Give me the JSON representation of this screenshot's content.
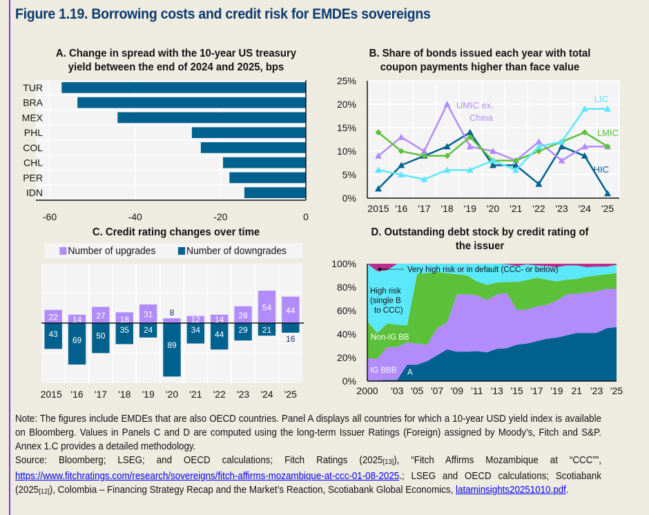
{
  "figure": {
    "title": "Figure 1.19. Borrowing costs and credit risk for EMDEs sovereigns"
  },
  "colors": {
    "dark_blue": "#00618f",
    "purple": "#b18cfa",
    "green": "#5cc13a",
    "cyan": "#5ce8fb",
    "magenta": "#b72f8a",
    "title_blue": "#0b3a6e",
    "background": "#eeebe1",
    "plot_bg": "#f4f4f4"
  },
  "chart_data": [
    {
      "id": "A",
      "type": "bar",
      "orientation": "horizontal",
      "title_line1": "A. Change in spread with the 10-year US treasury",
      "title_line2": "yield between the end of 2024 and 2025, bps",
      "categories": [
        "TUR",
        "BRA",
        "MEX",
        "PHL",
        "COL",
        "CHL",
        "PER",
        "IDN"
      ],
      "values": [
        -57.2,
        -53.5,
        -44.1,
        -26.7,
        -24.6,
        -19.4,
        -17.9,
        -14.4
      ],
      "xlim": [
        -60,
        0
      ],
      "xticks": [
        -60,
        -40,
        -20,
        0
      ],
      "xtick_labels": [
        "-60",
        "-40",
        "-20",
        "0"
      ],
      "color": "#00618f",
      "grid": true
    },
    {
      "id": "B",
      "type": "line",
      "title_line1": "B. Share of bonds issued each year with total",
      "title_line2": "coupon payments higher than face value",
      "x": [
        "2015",
        "'16",
        "'17",
        "'18",
        "'19",
        "'20",
        "'21",
        "'22",
        "'23",
        "'24",
        "'25"
      ],
      "ylim": [
        0,
        25
      ],
      "yticks": [
        0,
        5,
        10,
        15,
        20,
        25
      ],
      "ytick_labels": [
        "0%",
        "5%",
        "10%",
        "15%",
        "20%",
        "25%"
      ],
      "grid": true,
      "series": [
        {
          "name": "HIC",
          "label": "HIC",
          "color": "#00618f",
          "marker": "triangle",
          "values": [
            2,
            7,
            9,
            11,
            14,
            7,
            7,
            3,
            11,
            9,
            1
          ]
        },
        {
          "name": "UMIC ex. China",
          "label_line1": "UMIC ex.",
          "label_line2": "China",
          "color": "#b18cfa",
          "marker": "triangle",
          "values": [
            9,
            13,
            10,
            20,
            11,
            10,
            8,
            12,
            8,
            11,
            11
          ]
        },
        {
          "name": "LMIC",
          "label": "LMIC",
          "color": "#5cc13a",
          "marker": "diamond",
          "values": [
            14,
            10,
            9,
            9,
            13,
            8,
            8,
            10,
            12,
            14,
            11
          ]
        },
        {
          "name": "LIC",
          "label": "LIC",
          "color": "#5ce8fb",
          "marker": "triangle",
          "values": [
            6,
            5,
            4,
            6,
            6,
            8,
            6,
            11,
            12,
            19,
            19
          ]
        }
      ]
    },
    {
      "id": "C",
      "type": "bar",
      "title": "C. Credit rating changes over time",
      "categories": [
        "2015",
        "'16",
        "'17",
        "'18",
        "'19",
        "'20",
        "'21",
        "'22",
        "'23",
        "'24",
        "'25"
      ],
      "ylim": [
        -100,
        100
      ],
      "grid": true,
      "legend": [
        "Number of upgrades",
        "Number of downgrades"
      ],
      "series": [
        {
          "name": "Number of upgrades",
          "color": "#b18cfa",
          "values": [
            22,
            14,
            27,
            18,
            31,
            8,
            12,
            14,
            28,
            54,
            44
          ]
        },
        {
          "name": "Number of downgrades",
          "color": "#00618f",
          "values": [
            43,
            69,
            50,
            35,
            24,
            89,
            34,
            44,
            29,
            21,
            16
          ]
        }
      ]
    },
    {
      "id": "D",
      "type": "area",
      "stacked": true,
      "title_line1": "D. Outstanding debt stock by credit rating of",
      "title_line2": "the issuer",
      "x": [
        2000,
        2001,
        2002,
        2003,
        2004,
        2005,
        2006,
        2007,
        2008,
        2009,
        2010,
        2011,
        2012,
        2013,
        2014,
        2015,
        2016,
        2017,
        2018,
        2019,
        2020,
        2021,
        2022,
        2023,
        2024,
        2025
      ],
      "xtick_labels": [
        "2000",
        "'03",
        "'05",
        "'07",
        "'09",
        "'11",
        "'13",
        "'15",
        "'17",
        "'19",
        "21",
        "'23",
        "'25"
      ],
      "xtick_years": [
        2000,
        2003,
        2005,
        2007,
        2009,
        2011,
        2013,
        2015,
        2017,
        2019,
        2021,
        2023,
        2025
      ],
      "ylim": [
        0,
        100
      ],
      "yticks": [
        0,
        20,
        40,
        60,
        80,
        100
      ],
      "ytick_labels": [
        "0%",
        "20%",
        "40%",
        "60%",
        "80%",
        "100%"
      ],
      "series": [
        {
          "name": "A",
          "color": "#00618f",
          "values": [
            0.5,
            0.5,
            1,
            1,
            14,
            14,
            17,
            22,
            27,
            25,
            25,
            25.5,
            24.5,
            27.5,
            28,
            31,
            32,
            34,
            36,
            37,
            39,
            41,
            41,
            41,
            45,
            46
          ]
        },
        {
          "name": "IG BBB",
          "color": "#b18cfa",
          "values": [
            19,
            18.5,
            28,
            28,
            19,
            18,
            14,
            23,
            23,
            49,
            49,
            47.5,
            44.5,
            46.5,
            47,
            29.5,
            29,
            29.5,
            29,
            31.5,
            35,
            33.5,
            34.5,
            35.5,
            33.5,
            32.5
          ]
        },
        {
          "name": "Non-IG BB",
          "color": "#5cc13a",
          "values": [
            31.5,
            22,
            20,
            19,
            14.5,
            59.5,
            61,
            48,
            42,
            17,
            16,
            12,
            13,
            10,
            9.5,
            24,
            25,
            24.5,
            21.5,
            16.5,
            12.5,
            12.5,
            13.5,
            13.5,
            12.5,
            13.5
          ]
        },
        {
          "name": "High risk (single B to CCC)",
          "color": "#5ce8fb",
          "values": [
            49,
            52.5,
            45.5,
            52,
            52.5,
            8.5,
            8,
            7,
            8,
            9,
            10,
            15,
            18,
            16,
            15,
            13.5,
            13.5,
            10.5,
            11.5,
            12,
            12,
            11.5,
            8,
            7.5,
            6.5,
            7
          ]
        },
        {
          "name": "Very high risk or in default (CCC- or below)",
          "color": "#b72f8a",
          "values": [
            0,
            6.5,
            5.5,
            0,
            0,
            0,
            0,
            0,
            0,
            0,
            0,
            0,
            0,
            0,
            0.5,
            2,
            0.5,
            1.5,
            2,
            3,
            1.5,
            1.5,
            3,
            2.5,
            2.5,
            1
          ]
        }
      ],
      "annotations": {
        "ccc": "Very high risk or in default (CCC- or below)",
        "high_risk_1": "High risk",
        "high_risk_2": "(single B",
        "high_risk_3": "to CCC)",
        "bb": "Non-IG BB",
        "bbb": "IG BBB",
        "a": "A"
      }
    }
  ],
  "notes": {
    "note": "Note: The figures include EMDEs that are also OECD countries. Panel A displays all countries for which a 10-year USD yield index is available on Bloomberg. Values in Panels C and D are computed using the long-term Issuer Ratings (Foreign) assigned by Moody’s, Fitch and S&P. Annex 1.C provides a detailed methodology.",
    "source_1": "Source: Bloomberg; LSEG; and OECD calculations; Fitch Ratings (2025",
    "source_ref13": "[13]",
    "source_2": "), “Fitch Affirms Mozambique at “CCC””, ",
    "source_link1": "https://www.fitchratings.com/research/sovereigns/fitch-affirms-mozambique-at-ccc-01-08-2025",
    "source_3": ".; LSEG and OECD calculations; Scotiabank (2025",
    "source_ref12": "[12]",
    "source_4": "), Colombia – Financing Strategy Recap and the Market’s Reaction, Scotiabank Global Economics, ",
    "source_link2": "lataminsights20251010.pdf",
    "source_5": "."
  }
}
